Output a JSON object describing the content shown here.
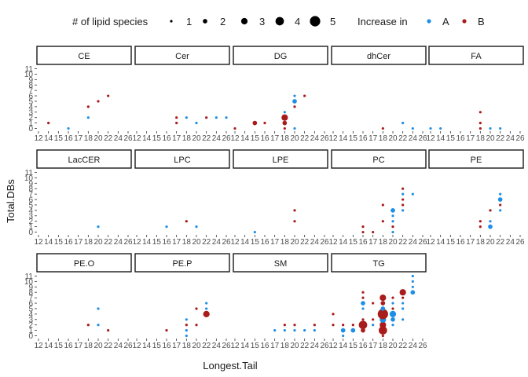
{
  "legend": {
    "size_title": "# of lipid species",
    "size_labels": [
      "1",
      "2",
      "3",
      "4",
      "5"
    ],
    "color_title": "Increase in",
    "color_labels": [
      "A",
      "B"
    ]
  },
  "colors": {
    "A": "#1f8fe6",
    "B": "#a81c1c"
  },
  "chart_data": {
    "type": "scatter",
    "xlabel": "Longest.Tail",
    "ylabel": "Total.DBs",
    "x_ticks": [
      "12",
      "14",
      "15",
      "16",
      "17",
      "18",
      "20",
      "22",
      "24",
      "26"
    ],
    "y_ticks": [
      "0",
      "1",
      "2",
      "3",
      "4",
      "5",
      "6",
      "7",
      "8",
      "9",
      "10",
      "11"
    ],
    "size_legend": [
      1,
      2,
      3,
      4,
      5
    ],
    "panels": [
      {
        "title": "CE",
        "points": [
          {
            "x": "14",
            "y": 1,
            "g": "B",
            "n": 1
          },
          {
            "x": "16",
            "y": 0,
            "g": "A",
            "n": 1
          },
          {
            "x": "18",
            "y": 4,
            "g": "B",
            "n": 1
          },
          {
            "x": "18",
            "y": 2,
            "g": "A",
            "n": 1
          },
          {
            "x": "20",
            "y": 5,
            "g": "B",
            "n": 1
          },
          {
            "x": "22",
            "y": 6,
            "g": "B",
            "n": 1
          }
        ]
      },
      {
        "title": "Cer",
        "points": [
          {
            "x": "17",
            "y": 1,
            "g": "B",
            "n": 1
          },
          {
            "x": "17",
            "y": 2,
            "g": "B",
            "n": 1
          },
          {
            "x": "18",
            "y": 2,
            "g": "A",
            "n": 1
          },
          {
            "x": "20",
            "y": 1,
            "g": "A",
            "n": 1
          },
          {
            "x": "22",
            "y": 2,
            "g": "B",
            "n": 1
          },
          {
            "x": "24",
            "y": 2,
            "g": "A",
            "n": 1
          },
          {
            "x": "26",
            "y": 2,
            "g": "A",
            "n": 1
          }
        ]
      },
      {
        "title": "DG",
        "points": [
          {
            "x": "12",
            "y": 0,
            "g": "B",
            "n": 1
          },
          {
            "x": "15",
            "y": 1,
            "g": "B",
            "n": 2
          },
          {
            "x": "16",
            "y": 1,
            "g": "B",
            "n": 1
          },
          {
            "x": "18",
            "y": 0,
            "g": "B",
            "n": 1
          },
          {
            "x": "18",
            "y": 1,
            "g": "B",
            "n": 2
          },
          {
            "x": "18",
            "y": 2,
            "g": "B",
            "n": 3
          },
          {
            "x": "18",
            "y": 3,
            "g": "A",
            "n": 1
          },
          {
            "x": "20",
            "y": 0,
            "g": "A",
            "n": 1
          },
          {
            "x": "20",
            "y": 4,
            "g": "B",
            "n": 1
          },
          {
            "x": "20",
            "y": 5,
            "g": "A",
            "n": 2
          },
          {
            "x": "20",
            "y": 6,
            "g": "A",
            "n": 1
          },
          {
            "x": "22",
            "y": 6,
            "g": "B",
            "n": 1
          }
        ]
      },
      {
        "title": "dhCer",
        "points": [
          {
            "x": "18",
            "y": 0,
            "g": "B",
            "n": 1
          },
          {
            "x": "22",
            "y": 1,
            "g": "A",
            "n": 1
          },
          {
            "x": "24",
            "y": 0,
            "g": "A",
            "n": 1
          }
        ]
      },
      {
        "title": "FA",
        "points": [
          {
            "x": "12",
            "y": 0,
            "g": "A",
            "n": 1
          },
          {
            "x": "14",
            "y": 0,
            "g": "A",
            "n": 1
          },
          {
            "x": "18",
            "y": 0,
            "g": "B",
            "n": 1
          },
          {
            "x": "18",
            "y": 1,
            "g": "B",
            "n": 1
          },
          {
            "x": "18",
            "y": 3,
            "g": "B",
            "n": 1
          },
          {
            "x": "20",
            "y": 0,
            "g": "A",
            "n": 1
          },
          {
            "x": "22",
            "y": 0,
            "g": "A",
            "n": 1
          }
        ]
      },
      {
        "title": "LacCER",
        "points": [
          {
            "x": "20",
            "y": 1,
            "g": "A",
            "n": 1
          }
        ]
      },
      {
        "title": "LPC",
        "points": [
          {
            "x": "16",
            "y": 1,
            "g": "A",
            "n": 1
          },
          {
            "x": "18",
            "y": 2,
            "g": "B",
            "n": 1
          },
          {
            "x": "20",
            "y": 1,
            "g": "A",
            "n": 1
          }
        ]
      },
      {
        "title": "LPE",
        "points": [
          {
            "x": "15",
            "y": 0,
            "g": "A",
            "n": 1
          },
          {
            "x": "20",
            "y": 2,
            "g": "B",
            "n": 1
          },
          {
            "x": "20",
            "y": 4,
            "g": "B",
            "n": 1
          }
        ]
      },
      {
        "title": "PC",
        "points": [
          {
            "x": "16",
            "y": 0,
            "g": "B",
            "n": 1
          },
          {
            "x": "16",
            "y": 1,
            "g": "B",
            "n": 1
          },
          {
            "x": "17",
            "y": 0,
            "g": "B",
            "n": 1
          },
          {
            "x": "18",
            "y": 2,
            "g": "B",
            "n": 1
          },
          {
            "x": "18",
            "y": 5,
            "g": "B",
            "n": 1
          },
          {
            "x": "20",
            "y": 0,
            "g": "A",
            "n": 1
          },
          {
            "x": "20",
            "y": 1,
            "g": "B",
            "n": 1
          },
          {
            "x": "20",
            "y": 2,
            "g": "A",
            "n": 1
          },
          {
            "x": "20",
            "y": 3,
            "g": "A",
            "n": 1
          },
          {
            "x": "20",
            "y": 4,
            "g": "A",
            "n": 2
          },
          {
            "x": "22",
            "y": 4,
            "g": "A",
            "n": 1
          },
          {
            "x": "22",
            "y": 5,
            "g": "B",
            "n": 1
          },
          {
            "x": "22",
            "y": 6,
            "g": "B",
            "n": 1
          },
          {
            "x": "22",
            "y": 7,
            "g": "A",
            "n": 1
          },
          {
            "x": "22",
            "y": 8,
            "g": "B",
            "n": 1
          },
          {
            "x": "24",
            "y": 7,
            "g": "A",
            "n": 1
          }
        ]
      },
      {
        "title": "PE",
        "points": [
          {
            "x": "18",
            "y": 1,
            "g": "B",
            "n": 1
          },
          {
            "x": "18",
            "y": 2,
            "g": "B",
            "n": 1
          },
          {
            "x": "20",
            "y": 1,
            "g": "A",
            "n": 2
          },
          {
            "x": "20",
            "y": 2,
            "g": "A",
            "n": 1
          },
          {
            "x": "20",
            "y": 4,
            "g": "B",
            "n": 1
          },
          {
            "x": "22",
            "y": 4,
            "g": "A",
            "n": 1
          },
          {
            "x": "22",
            "y": 5,
            "g": "B",
            "n": 1
          },
          {
            "x": "22",
            "y": 6,
            "g": "A",
            "n": 2
          },
          {
            "x": "22",
            "y": 7,
            "g": "A",
            "n": 1
          }
        ]
      },
      {
        "title": "PE.O",
        "points": [
          {
            "x": "18",
            "y": 2,
            "g": "B",
            "n": 1
          },
          {
            "x": "20",
            "y": 2,
            "g": "A",
            "n": 1
          },
          {
            "x": "20",
            "y": 5,
            "g": "A",
            "n": 1
          },
          {
            "x": "22",
            "y": 1,
            "g": "B",
            "n": 1
          }
        ]
      },
      {
        "title": "PE.P",
        "points": [
          {
            "x": "16",
            "y": 1,
            "g": "B",
            "n": 1
          },
          {
            "x": "18",
            "y": 0,
            "g": "A",
            "n": 1
          },
          {
            "x": "18",
            "y": 1,
            "g": "A",
            "n": 1
          },
          {
            "x": "18",
            "y": 2,
            "g": "B",
            "n": 1
          },
          {
            "x": "18",
            "y": 3,
            "g": "A",
            "n": 1
          },
          {
            "x": "20",
            "y": 2,
            "g": "B",
            "n": 1
          },
          {
            "x": "20",
            "y": 5,
            "g": "B",
            "n": 1
          },
          {
            "x": "22",
            "y": 4,
            "g": "B",
            "n": 3
          },
          {
            "x": "22",
            "y": 5,
            "g": "A",
            "n": 1
          },
          {
            "x": "22",
            "y": 6,
            "g": "A",
            "n": 1
          }
        ]
      },
      {
        "title": "SM",
        "points": [
          {
            "x": "17",
            "y": 1,
            "g": "A",
            "n": 1
          },
          {
            "x": "18",
            "y": 2,
            "g": "B",
            "n": 1
          },
          {
            "x": "18",
            "y": 1,
            "g": "A",
            "n": 1
          },
          {
            "x": "20",
            "y": 1,
            "g": "A",
            "n": 1
          },
          {
            "x": "20",
            "y": 2,
            "g": "B",
            "n": 1
          },
          {
            "x": "22",
            "y": 1,
            "g": "A",
            "n": 1
          },
          {
            "x": "24",
            "y": 1,
            "g": "A",
            "n": 1
          },
          {
            "x": "24",
            "y": 2,
            "g": "B",
            "n": 1
          }
        ]
      },
      {
        "title": "TG",
        "points": [
          {
            "x": "12",
            "y": 2,
            "g": "B",
            "n": 1
          },
          {
            "x": "12",
            "y": 4,
            "g": "B",
            "n": 1
          },
          {
            "x": "14",
            "y": 0,
            "g": "A",
            "n": 1
          },
          {
            "x": "14",
            "y": 1,
            "g": "A",
            "n": 2
          },
          {
            "x": "14",
            "y": 2,
            "g": "B",
            "n": 1
          },
          {
            "x": "15",
            "y": 1,
            "g": "A",
            "n": 2
          },
          {
            "x": "15",
            "y": 2,
            "g": "B",
            "n": 1
          },
          {
            "x": "16",
            "y": 1,
            "g": "B",
            "n": 2
          },
          {
            "x": "16",
            "y": 2,
            "g": "B",
            "n": 4
          },
          {
            "x": "16",
            "y": 3,
            "g": "B",
            "n": 1
          },
          {
            "x": "16",
            "y": 5,
            "g": "A",
            "n": 1
          },
          {
            "x": "16",
            "y": 6,
            "g": "A",
            "n": 2
          },
          {
            "x": "16",
            "y": 7,
            "g": "B",
            "n": 1
          },
          {
            "x": "16",
            "y": 8,
            "g": "B",
            "n": 1
          },
          {
            "x": "17",
            "y": 2,
            "g": "A",
            "n": 1
          },
          {
            "x": "17",
            "y": 3,
            "g": "B",
            "n": 1
          },
          {
            "x": "17",
            "y": 6,
            "g": "B",
            "n": 1
          },
          {
            "x": "18",
            "y": 0,
            "g": "B",
            "n": 1
          },
          {
            "x": "18",
            "y": 1,
            "g": "B",
            "n": 4
          },
          {
            "x": "18",
            "y": 2,
            "g": "B",
            "n": 3
          },
          {
            "x": "18",
            "y": 3,
            "g": "A",
            "n": 3
          },
          {
            "x": "18",
            "y": 4,
            "g": "B",
            "n": 5
          },
          {
            "x": "18",
            "y": 5,
            "g": "A",
            "n": 2
          },
          {
            "x": "18",
            "y": 6,
            "g": "B",
            "n": 2
          },
          {
            "x": "18",
            "y": 7,
            "g": "B",
            "n": 3
          },
          {
            "x": "20",
            "y": 2,
            "g": "A",
            "n": 1
          },
          {
            "x": "20",
            "y": 3,
            "g": "A",
            "n": 2
          },
          {
            "x": "20",
            "y": 4,
            "g": "A",
            "n": 3
          },
          {
            "x": "20",
            "y": 5,
            "g": "B",
            "n": 1
          },
          {
            "x": "20",
            "y": 6,
            "g": "A",
            "n": 1
          },
          {
            "x": "20",
            "y": 7,
            "g": "B",
            "n": 1
          },
          {
            "x": "22",
            "y": 3,
            "g": "A",
            "n": 1
          },
          {
            "x": "22",
            "y": 5,
            "g": "A",
            "n": 1
          },
          {
            "x": "22",
            "y": 6,
            "g": "A",
            "n": 1
          },
          {
            "x": "22",
            "y": 7,
            "g": "B",
            "n": 1
          },
          {
            "x": "22",
            "y": 8,
            "g": "B",
            "n": 3
          },
          {
            "x": "24",
            "y": 8,
            "g": "A",
            "n": 2
          },
          {
            "x": "24",
            "y": 9,
            "g": "A",
            "n": 1
          },
          {
            "x": "24",
            "y": 10,
            "g": "A",
            "n": 1
          },
          {
            "x": "24",
            "y": 11,
            "g": "A",
            "n": 1
          }
        ]
      }
    ]
  }
}
